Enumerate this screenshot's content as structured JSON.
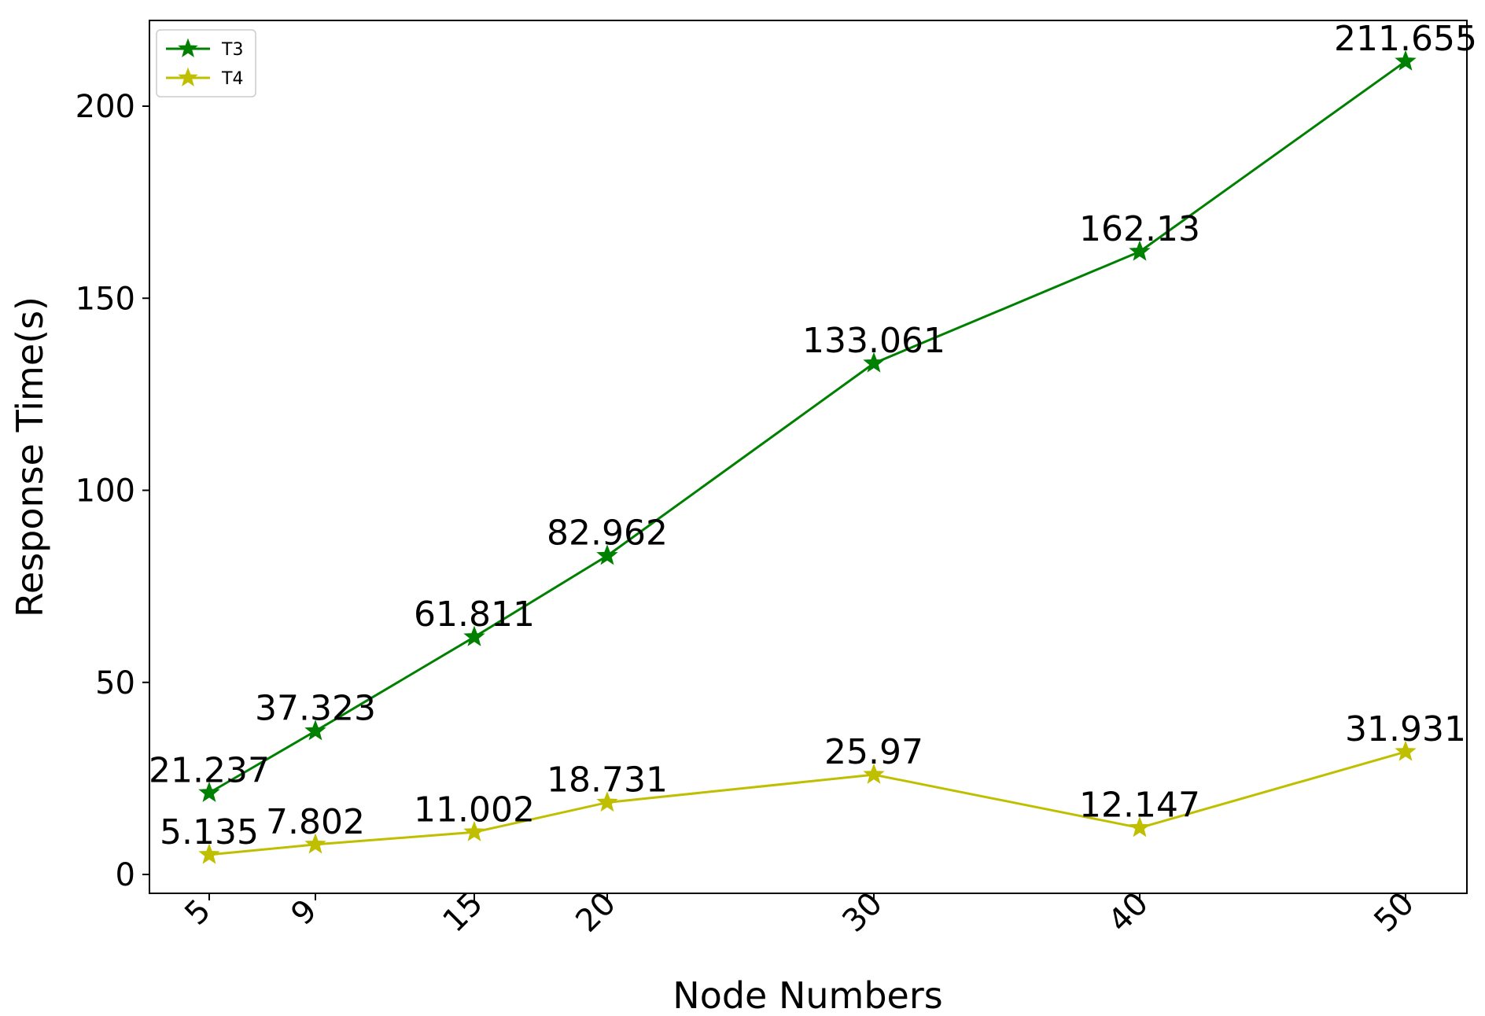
{
  "chart_data": {
    "type": "line",
    "title": "",
    "xlabel": "Node Numbers",
    "ylabel": "Response Time(s)",
    "x": [
      5,
      9,
      15,
      20,
      30,
      40,
      50
    ],
    "x_tick_labels": [
      "5",
      "9",
      "15",
      "20",
      "30",
      "40",
      "50"
    ],
    "y_ticks": [
      0,
      50,
      100,
      150,
      200
    ],
    "y_tick_labels": [
      "0",
      "50",
      "100",
      "150",
      "200"
    ],
    "ylim": [
      -5,
      222
    ],
    "grid": false,
    "legend_position": "top-left",
    "series": [
      {
        "name": "T3",
        "color": "#008000",
        "marker": "star",
        "values": [
          21.237,
          37.323,
          61.811,
          82.962,
          133.061,
          162.13,
          211.655
        ],
        "labels": [
          "21.237",
          "37.323",
          "61.811",
          "82.962",
          "133.061",
          "162.13",
          "211.655"
        ]
      },
      {
        "name": "T4",
        "color": "#bfbf00",
        "marker": "star",
        "values": [
          5.135,
          7.802,
          11.002,
          18.731,
          25.97,
          12.147,
          31.931
        ],
        "labels": [
          "5.135",
          "7.802",
          "11.002",
          "18.731",
          "25.97",
          "12.147",
          "31.931"
        ]
      }
    ]
  }
}
